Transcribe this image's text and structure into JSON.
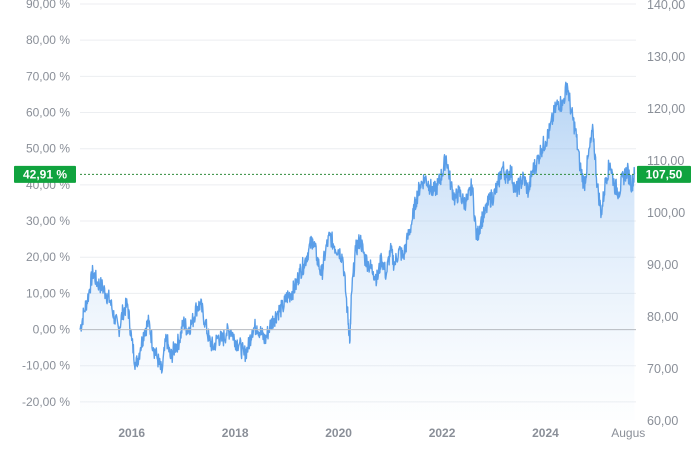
{
  "chart_data": {
    "type": "area",
    "title": "",
    "xlabel": "",
    "ylabel": "",
    "x_ticks": [
      "2016",
      "2018",
      "2020",
      "2022",
      "2024",
      "Augus"
    ],
    "x_tick_years": [
      2016,
      2018,
      2020,
      2022,
      2024,
      2025.6
    ],
    "xlim": [
      2015.0,
      2025.75
    ],
    "left_axis": {
      "unit": "%",
      "ylim": [
        -25,
        90
      ],
      "ticks": [
        "-20,00 %",
        "-10,00 %",
        "0,00 %",
        "10,00 %",
        "20,00 %",
        "30,00 %",
        "40,00 %",
        "50,00 %",
        "60,00 %",
        "70,00 %",
        "80,00 %",
        "90,00 %"
      ],
      "tick_values": [
        -20,
        -10,
        0,
        10,
        20,
        30,
        40,
        50,
        60,
        70,
        80,
        90
      ]
    },
    "right_axis": {
      "ylim": [
        60,
        140
      ],
      "ticks": [
        "60,00",
        "70,00",
        "80,00",
        "90,00",
        "100,00",
        "110,00",
        "120,00",
        "130,00",
        "140,00"
      ],
      "tick_values": [
        60,
        70,
        80,
        90,
        100,
        110,
        120,
        130,
        140
      ]
    },
    "current_left_label": "42,91 %",
    "current_left_value": 42.91,
    "current_right_label": "107,50",
    "grid": true,
    "series": [
      {
        "values_x": [
          2015.0,
          2015.08,
          2015.17,
          2015.25,
          2015.33,
          2015.42,
          2015.5,
          2015.58,
          2015.67,
          2015.75,
          2015.83,
          2015.92,
          2016.0,
          2016.08,
          2016.17,
          2016.25,
          2016.33,
          2016.42,
          2016.5,
          2016.58,
          2016.67,
          2016.75,
          2016.83,
          2016.92,
          2017.0,
          2017.08,
          2017.17,
          2017.25,
          2017.33,
          2017.42,
          2017.5,
          2017.58,
          2017.67,
          2017.75,
          2017.83,
          2017.92,
          2018.0,
          2018.08,
          2018.17,
          2018.25,
          2018.33,
          2018.42,
          2018.5,
          2018.58,
          2018.67,
          2018.75,
          2018.83,
          2018.92,
          2019.0,
          2019.08,
          2019.17,
          2019.25,
          2019.33,
          2019.42,
          2019.5,
          2019.58,
          2019.67,
          2019.75,
          2019.83,
          2019.92,
          2020.0,
          2020.08,
          2020.17,
          2020.22,
          2020.25,
          2020.33,
          2020.42,
          2020.5,
          2020.58,
          2020.67,
          2020.75,
          2020.83,
          2020.92,
          2021.0,
          2021.08,
          2021.17,
          2021.25,
          2021.33,
          2021.42,
          2021.5,
          2021.58,
          2021.67,
          2021.75,
          2021.83,
          2021.92,
          2022.0,
          2022.08,
          2022.17,
          2022.25,
          2022.33,
          2022.42,
          2022.5,
          2022.58,
          2022.67,
          2022.75,
          2022.83,
          2022.92,
          2023.0,
          2023.08,
          2023.17,
          2023.25,
          2023.33,
          2023.42,
          2023.5,
          2023.58,
          2023.67,
          2023.75,
          2023.83,
          2023.92,
          2024.0,
          2024.08,
          2024.17,
          2024.25,
          2024.33,
          2024.42,
          2024.5,
          2024.58,
          2024.67,
          2024.75,
          2024.83,
          2024.92,
          2025.0,
          2025.08,
          2025.17,
          2025.25,
          2025.33,
          2025.42,
          2025.5,
          2025.58,
          2025.67,
          2025.72
        ],
        "values_y": [
          0,
          5,
          10,
          16,
          13,
          12,
          10,
          8,
          3,
          0,
          5,
          7,
          -3,
          -10,
          -5,
          0,
          2,
          -5,
          -8,
          -12,
          -2,
          -8,
          -5,
          -3,
          2,
          0,
          2,
          6,
          7,
          2,
          -3,
          -5,
          -2,
          -3,
          -1,
          0,
          -3,
          -4,
          -7,
          -5,
          0,
          1,
          -1,
          -3,
          1,
          3,
          5,
          6,
          9,
          10,
          12,
          16,
          18,
          22,
          25,
          20,
          15,
          22,
          26,
          23,
          22,
          20,
          5,
          -3,
          10,
          22,
          25,
          20,
          18,
          16,
          14,
          20,
          15,
          22,
          18,
          22,
          20,
          25,
          30,
          36,
          40,
          42,
          40,
          38,
          40,
          43,
          48,
          40,
          36,
          38,
          35,
          36,
          40,
          25,
          30,
          32,
          36,
          37,
          40,
          45,
          42,
          44,
          38,
          40,
          42,
          38,
          44,
          46,
          50,
          52,
          55,
          60,
          63,
          62,
          68,
          60,
          55,
          45,
          40,
          48,
          55,
          40,
          32,
          42,
          46,
          40,
          38,
          42,
          44,
          40,
          42.91
        ]
      }
    ]
  }
}
